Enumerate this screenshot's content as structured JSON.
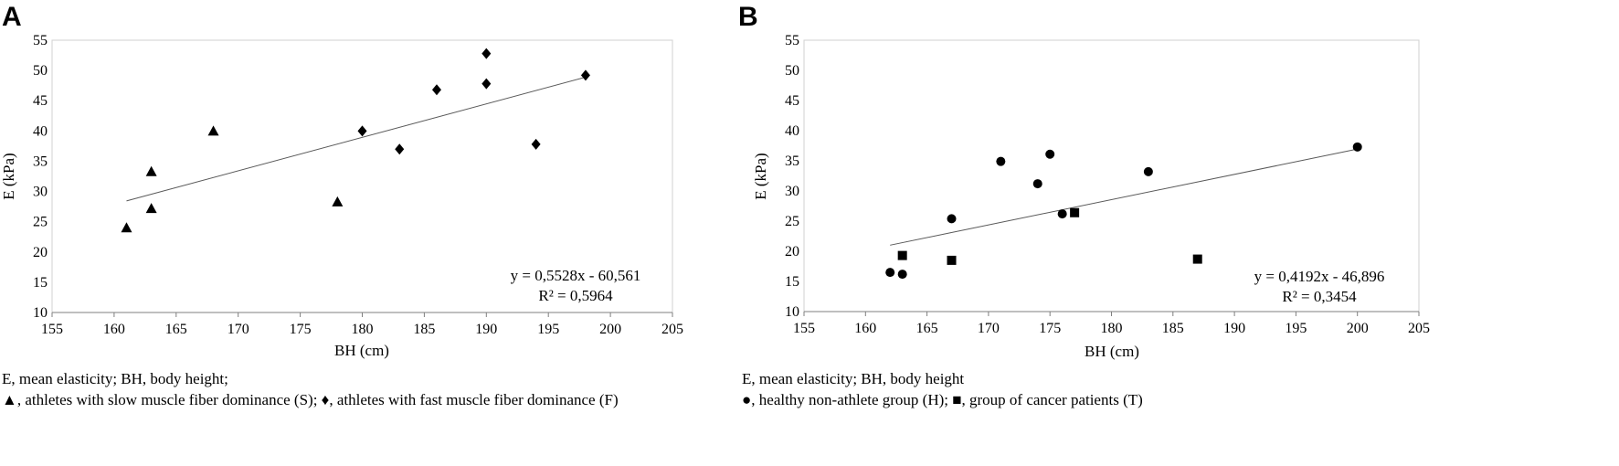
{
  "chart_data": [
    {
      "panel": "A",
      "type": "scatter",
      "xlabel": "BH (cm)",
      "ylabel": "E (kPa)",
      "xlim": [
        155,
        205
      ],
      "ylim": [
        10,
        55
      ],
      "xticks": [
        155,
        160,
        165,
        170,
        175,
        180,
        185,
        190,
        195,
        200,
        205
      ],
      "yticks": [
        10,
        15,
        20,
        25,
        30,
        35,
        40,
        45,
        50,
        55
      ],
      "grid": false,
      "series": [
        {
          "marker": "triangle",
          "points": [
            [
              161,
              24.0
            ],
            [
              163,
              27.2
            ],
            [
              163,
              33.3
            ],
            [
              168,
              40.0
            ],
            [
              178,
              28.3
            ]
          ]
        },
        {
          "marker": "diamond",
          "points": [
            [
              180,
              40.0
            ],
            [
              183,
              37.0
            ],
            [
              186,
              46.8
            ],
            [
              190,
              47.8
            ],
            [
              190,
              52.8
            ],
            [
              194,
              37.8
            ],
            [
              198,
              49.2
            ]
          ]
        }
      ],
      "trendline": {
        "slope": 0.5528,
        "intercept": -60.561,
        "x_range": [
          161,
          198
        ]
      },
      "equation": "y = 0,5528x - 60,561",
      "r2": "R² = 0,5964",
      "caption_line1": "E, mean elasticity; BH, body height;",
      "caption_line2": "▲, athletes with slow muscle fiber dominance (S); ♦, athletes with fast muscle fiber dominance  (F)"
    },
    {
      "panel": "B",
      "type": "scatter",
      "xlabel": "BH (cm)",
      "ylabel": "E (kPa)",
      "xlim": [
        155,
        205
      ],
      "ylim": [
        10,
        55
      ],
      "xticks": [
        155,
        160,
        165,
        170,
        175,
        180,
        185,
        190,
        195,
        200,
        205
      ],
      "yticks": [
        10,
        15,
        20,
        25,
        30,
        35,
        40,
        45,
        50,
        55
      ],
      "grid": false,
      "series": [
        {
          "marker": "circle",
          "points": [
            [
              162,
              16.5
            ],
            [
              163,
              16.2
            ],
            [
              167,
              25.4
            ],
            [
              171,
              34.9
            ],
            [
              174,
              31.2
            ],
            [
              175,
              36.1
            ],
            [
              176,
              26.2
            ],
            [
              183,
              33.2
            ],
            [
              200,
              37.3
            ]
          ]
        },
        {
          "marker": "square",
          "points": [
            [
              163,
              19.3
            ],
            [
              167,
              18.5
            ],
            [
              177,
              26.4
            ],
            [
              187,
              18.7
            ]
          ]
        }
      ],
      "trendline": {
        "slope": 0.4192,
        "intercept": -46.896,
        "x_range": [
          162,
          200
        ]
      },
      "equation": "y = 0,4192x - 46,896",
      "r2": "R² = 0,3454",
      "caption_line1": "E, mean elasticity; BH, body height",
      "caption_line2": "●, healthy non-athlete group (H); ■, group of cancer patients (T)"
    }
  ]
}
